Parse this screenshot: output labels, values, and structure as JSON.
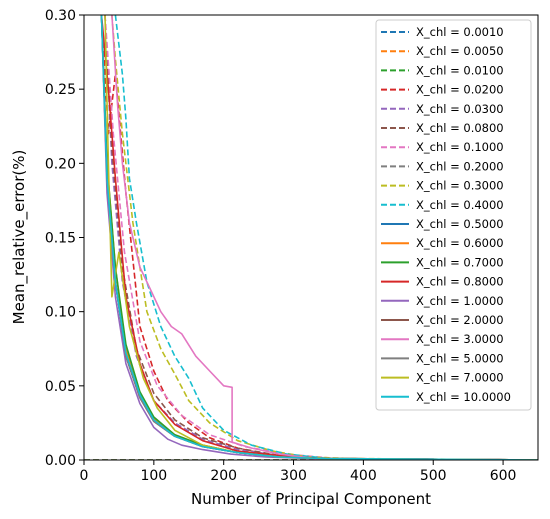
{
  "chart_data": {
    "type": "line",
    "xlabel": "Number of Principal Component",
    "ylabel": "Mean_relative_error(%)",
    "xlim": [
      0,
      650
    ],
    "ylim": [
      0,
      0.3
    ],
    "xticks": [
      0,
      100,
      200,
      300,
      400,
      500,
      600
    ],
    "yticks": [
      0.0,
      0.05,
      0.1,
      0.15,
      0.2,
      0.25,
      0.3
    ],
    "xtick_labels": [
      "0",
      "100",
      "200",
      "300",
      "400",
      "500",
      "600"
    ],
    "ytick_labels": [
      "0.00",
      "0.05",
      "0.10",
      "0.15",
      "0.20",
      "0.25",
      "0.30"
    ],
    "grid": false,
    "legend_position": "top-right",
    "series": [
      {
        "name": "X_chl =  0.0010",
        "color": "#1f77b4",
        "dash": true,
        "x": [
          0,
          650
        ],
        "y": [
          0.0,
          0.0
        ]
      },
      {
        "name": "X_chl =  0.0050",
        "color": "#ff7f0e",
        "dash": true,
        "x": [
          0,
          650
        ],
        "y": [
          0.0,
          0.0
        ]
      },
      {
        "name": "X_chl =  0.0100",
        "color": "#2ca02c",
        "dash": true,
        "x": [
          0,
          650
        ],
        "y": [
          0.0,
          0.0
        ]
      },
      {
        "name": "X_chl =  0.0200",
        "color": "#d62728",
        "dash": true,
        "x": [
          25,
          35,
          45,
          60,
          80,
          100,
          120,
          150,
          180,
          220,
          260,
          300,
          350,
          650
        ],
        "y": [
          0.3,
          0.22,
          0.26,
          0.18,
          0.09,
          0.06,
          0.04,
          0.025,
          0.015,
          0.008,
          0.004,
          0.002,
          0.001,
          0.0
        ]
      },
      {
        "name": "X_chl =  0.0300",
        "color": "#9467bd",
        "dash": true,
        "x": [
          30,
          40,
          55,
          75,
          100,
          130,
          170,
          220,
          280,
          350,
          650
        ],
        "y": [
          0.3,
          0.2,
          0.12,
          0.07,
          0.04,
          0.025,
          0.014,
          0.007,
          0.003,
          0.001,
          0.0
        ]
      },
      {
        "name": "X_chl =  0.0800",
        "color": "#8c564b",
        "dash": true,
        "x": [
          30,
          40,
          55,
          75,
          100,
          130,
          170,
          220,
          280,
          350,
          650
        ],
        "y": [
          0.3,
          0.21,
          0.13,
          0.075,
          0.045,
          0.027,
          0.015,
          0.008,
          0.003,
          0.001,
          0.0
        ]
      },
      {
        "name": "X_chl =  0.1000",
        "color": "#e377c2",
        "dash": true,
        "x": [
          30,
          42,
          58,
          80,
          105,
          140,
          180,
          230,
          290,
          360,
          650
        ],
        "y": [
          0.3,
          0.22,
          0.14,
          0.08,
          0.05,
          0.03,
          0.017,
          0.009,
          0.004,
          0.001,
          0.0
        ]
      },
      {
        "name": "X_chl =  0.2000",
        "color": "#7f7f7f",
        "dash": true,
        "x": [
          0,
          650
        ],
        "y": [
          0.0,
          0.0
        ]
      },
      {
        "name": "X_chl =  0.3000",
        "color": "#bcbd22",
        "dash": true,
        "x": [
          40,
          45,
          55,
          70,
          90,
          110,
          130,
          150,
          180,
          220,
          270,
          320,
          380,
          650
        ],
        "y": [
          0.3,
          0.27,
          0.22,
          0.16,
          0.1,
          0.075,
          0.058,
          0.04,
          0.025,
          0.013,
          0.006,
          0.002,
          0.001,
          0.0
        ]
      },
      {
        "name": "X_chl =  0.4000",
        "color": "#17becf",
        "dash": true,
        "x": [
          45,
          55,
          60,
          65,
          75,
          90,
          110,
          130,
          150,
          170,
          200,
          240,
          290,
          350,
          650
        ],
        "y": [
          0.3,
          0.26,
          0.23,
          0.19,
          0.16,
          0.12,
          0.09,
          0.07,
          0.055,
          0.035,
          0.02,
          0.01,
          0.004,
          0.001,
          0.0
        ]
      },
      {
        "name": "X_chl =  0.5000",
        "color": "#1f77b4",
        "dash": false,
        "x": [
          25,
          33,
          45,
          60,
          80,
          100,
          130,
          170,
          220,
          280,
          340,
          650
        ],
        "y": [
          0.3,
          0.19,
          0.12,
          0.07,
          0.042,
          0.026,
          0.016,
          0.009,
          0.005,
          0.002,
          0.001,
          0.0
        ]
      },
      {
        "name": "X_chl =  0.6000",
        "color": "#ff7f0e",
        "dash": false,
        "x": [
          25,
          33,
          45,
          60,
          80,
          100,
          130,
          170,
          220,
          280,
          340,
          650
        ],
        "y": [
          0.3,
          0.2,
          0.13,
          0.075,
          0.045,
          0.028,
          0.017,
          0.01,
          0.005,
          0.002,
          0.001,
          0.0
        ]
      },
      {
        "name": "X_chl =  0.7000",
        "color": "#2ca02c",
        "dash": false,
        "x": [
          25,
          33,
          45,
          60,
          80,
          100,
          130,
          170,
          220,
          280,
          340,
          650
        ],
        "y": [
          0.3,
          0.2,
          0.13,
          0.078,
          0.046,
          0.029,
          0.017,
          0.01,
          0.005,
          0.002,
          0.001,
          0.0
        ]
      },
      {
        "name": "X_chl =  0.8000",
        "color": "#d62728",
        "dash": false,
        "x": [
          25,
          35,
          40,
          45,
          60,
          80,
          100,
          130,
          170,
          220,
          280,
          340,
          650
        ],
        "y": [
          0.3,
          0.25,
          0.22,
          0.19,
          0.11,
          0.065,
          0.04,
          0.024,
          0.013,
          0.006,
          0.003,
          0.001,
          0.0
        ]
      },
      {
        "name": "X_chl =  1.0000",
        "color": "#9467bd",
        "dash": false,
        "x": [
          25,
          33,
          45,
          60,
          80,
          100,
          120,
          140,
          170,
          210,
          260,
          320,
          650
        ],
        "y": [
          0.3,
          0.18,
          0.11,
          0.065,
          0.038,
          0.022,
          0.014,
          0.01,
          0.007,
          0.004,
          0.002,
          0.001,
          0.0
        ]
      },
      {
        "name": "X_chl =  2.0000",
        "color": "#8c564b",
        "dash": false,
        "x": [
          25,
          33,
          45,
          60,
          80,
          100,
          130,
          170,
          220,
          280,
          340,
          650
        ],
        "y": [
          0.3,
          0.19,
          0.12,
          0.07,
          0.042,
          0.026,
          0.016,
          0.009,
          0.005,
          0.002,
          0.001,
          0.0
        ]
      },
      {
        "name": "X_chl =  3.0000",
        "color": "#e377c2",
        "dash": false,
        "x": [
          40,
          48,
          55,
          65,
          80,
          95,
          110,
          125,
          140,
          160,
          180,
          200,
          212,
          212,
          240,
          280,
          330,
          650
        ],
        "y": [
          0.3,
          0.24,
          0.2,
          0.16,
          0.13,
          0.115,
          0.1,
          0.09,
          0.085,
          0.07,
          0.06,
          0.05,
          0.049,
          0.012,
          0.008,
          0.004,
          0.001,
          0.0
        ]
      },
      {
        "name": "X_chl =  5.0000",
        "color": "#7f7f7f",
        "dash": false,
        "x": [
          25,
          33,
          45,
          60,
          80,
          100,
          130,
          170,
          220,
          280,
          340,
          650
        ],
        "y": [
          0.3,
          0.19,
          0.12,
          0.07,
          0.042,
          0.026,
          0.016,
          0.009,
          0.005,
          0.002,
          0.001,
          0.0
        ]
      },
      {
        "name": "X_chl =  7.0000",
        "color": "#bcbd22",
        "dash": false,
        "x": [
          30,
          35,
          40,
          50,
          65,
          85,
          105,
          130,
          170,
          220,
          280,
          340,
          650
        ],
        "y": [
          0.3,
          0.2,
          0.11,
          0.14,
          0.09,
          0.055,
          0.035,
          0.02,
          0.01,
          0.005,
          0.002,
          0.001,
          0.0
        ]
      },
      {
        "name": "X_chl = 10.0000",
        "color": "#17becf",
        "dash": false,
        "x": [
          25,
          33,
          45,
          60,
          80,
          100,
          130,
          170,
          220,
          280,
          340,
          650
        ],
        "y": [
          0.3,
          0.19,
          0.12,
          0.072,
          0.044,
          0.027,
          0.016,
          0.009,
          0.005,
          0.002,
          0.001,
          0.0
        ]
      }
    ]
  }
}
